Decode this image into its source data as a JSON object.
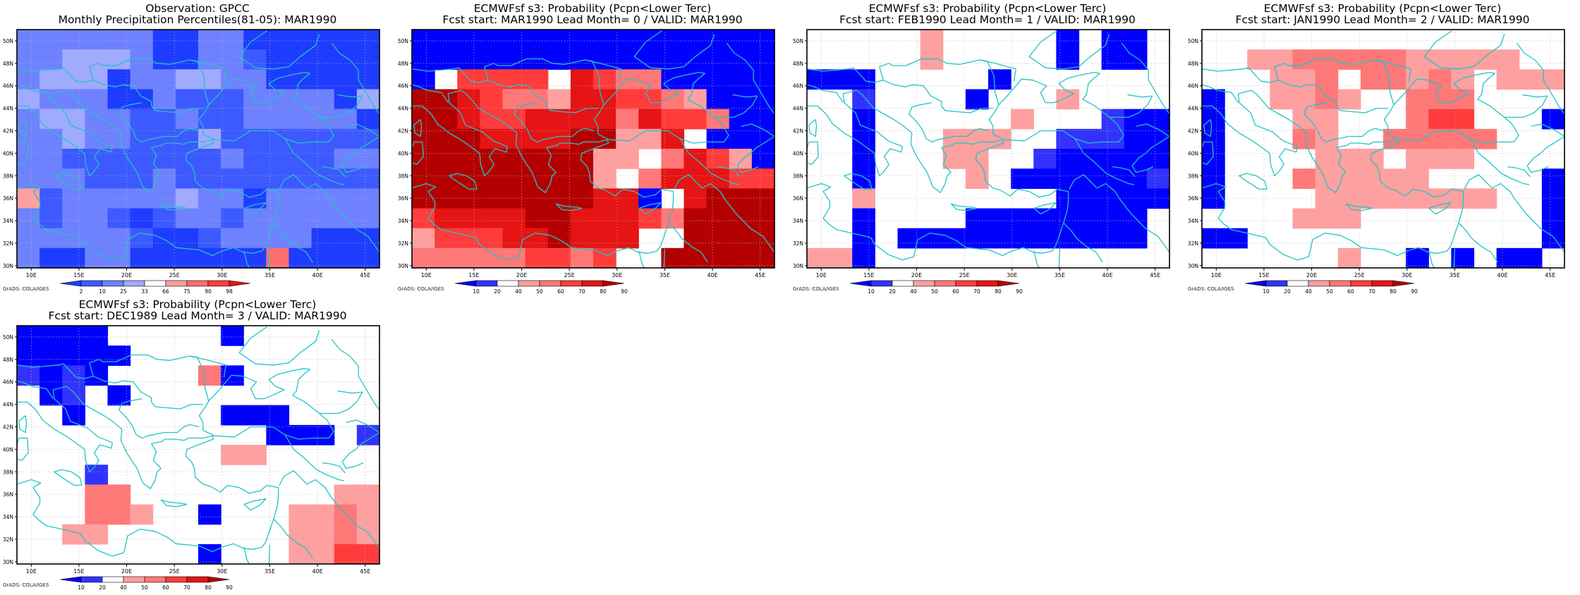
{
  "credit": "GrADS: COLA/IGES",
  "colors": {
    "frame": "#000000",
    "coast": "#22c4c4",
    "grid": "#b8b8b8"
  },
  "x_ticks": [
    "10E",
    "15E",
    "20E",
    "25E",
    "30E",
    "35E",
    "40E",
    "45E"
  ],
  "y_ticks": [
    "50N",
    "48N",
    "46N",
    "44N",
    "42N",
    "40N",
    "38N",
    "36N",
    "34N",
    "32N",
    "30N"
  ],
  "palettes": {
    "obs": [
      "#1e3cff",
      "#3c5aff",
      "#6e82ff",
      "#a0aaff",
      "#ffffff",
      "#ffa0a0",
      "#ff6e6e",
      "#ff3c3c",
      "#e61414"
    ],
    "prob": [
      "#0000ff",
      "#3232ff",
      "#ffffff",
      "#ffa0a0",
      "#ff7878",
      "#ff3c3c",
      "#e61414",
      "#b40000"
    ]
  },
  "colorbars": {
    "obs": {
      "labels": [
        "2",
        "10",
        "25",
        "33",
        "66",
        "75",
        "90",
        "98"
      ]
    },
    "prob": {
      "labels": [
        "10",
        "20",
        "40",
        "50",
        "60",
        "70",
        "80",
        "90"
      ]
    }
  },
  "panels": [
    {
      "title1": "Observation: GPCC",
      "title2": "Monthly Precipitation Percentiles(81-05): MAR1990",
      "palette": "obs",
      "grid": [
        "2222220022000000",
        "2233320022100000",
        "2333022332200000",
        "3222002111222203",
        "2332211211222220",
        "2232211131111111",
        "2211111112111122",
        "2221112111111111",
        "5122222322022222",
        "2122101221222222",
        "2222210012222000",
        "2002200000060000"
      ]
    },
    {
      "title1": "ECMWFsf s3: Probability (Pcpn<Lower Terc)",
      "title2": "Fcst start: MAR1990   Lead Month= 0 / VALID: MAR1990",
      "palette": "prob",
      "grid": [
        "0000000000000000",
        "0000000000000000",
        "0255552654400000",
        "7765443665543000",
        "7765566664655400",
        "7776666773362000",
        "7777777733246530",
        "7777777732466655",
        "7777777766026777",
        "5666677666547777",
        "3555667666227777",
        "4444455452277777"
      ]
    },
    {
      "title1": "ECMWFsf s3: Probability (Pcpn<Lower Terc)",
      "title2": "Fcst start: FEB1990   Lead Month= 1 / VALID: MAR1990",
      "palette": "prob",
      "grid": [
        "2222232222202002",
        "2222232222202002",
        "0002222202222222",
        "2212222022232222",
        "2202222223222100",
        "2202223332211100",
        "2202223322100000",
        "2202222320000001",
        "2232222222200000",
        "2202222000000002",
        "2202000000000002",
        "3302222222222222"
      ]
    },
    {
      "title1": "ECMWFsf s3: Probability (Pcpn<Lower Terc)",
      "title2": "Fcst start: JAN1990   Lead Month= 2 / VALID: MAR1990",
      "palette": "prob",
      "grid": [
        "2222222222222222",
        "2233444443333322",
        "2223342443432333",
        "0223343224442222",
        "0222332224552220",
        "0222432244444222",
        "0222233323332222",
        "0222433333222220",
        "0222233333333220",
        "2222333222222220",
        "0022222222222220",
        "2222223220202002"
      ]
    },
    {
      "title1": "ECMWFsf s3: Probability (Pcpn<Lower Terc)",
      "title2": "Fcst start: DEC1989   Lead Month= 3 / VALID: MAR1990",
      "palette": "prob",
      "grid": [
        "0000222220222222",
        "0000022222222222",
        "1010222240222222",
        "2012022222222222",
        "2202222220002222",
        "2222222222200021",
        "2222222223322222",
        "2221222222222222",
        "2224422222222233",
        "2224432202223343",
        "2233222222223343",
        "2222222202223355"
      ]
    }
  ]
}
